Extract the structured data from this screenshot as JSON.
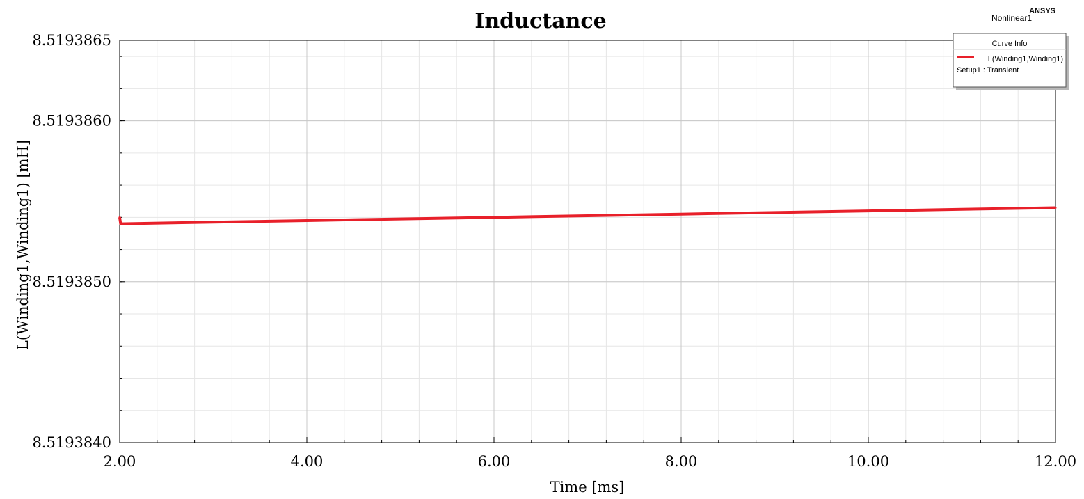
{
  "brand": "ANSYS",
  "plot_name": "Nonlinear1",
  "legend": {
    "title": "Curve Info",
    "entries": [
      {
        "name": "L(Winding1,Winding1)",
        "color": "#e8202a"
      }
    ],
    "setup": "Setup1 : Transient"
  },
  "chart_data": {
    "type": "line",
    "title": "Inductance",
    "xlabel": "Time [ms]",
    "ylabel": "L(Winding1,Winding1) [mH]",
    "xlim": [
      2.0,
      12.0
    ],
    "ylim": [
      8.519384,
      8.5193865
    ],
    "x_ticks": [
      2,
      4,
      6,
      8,
      10,
      12
    ],
    "x_tick_labels": [
      "2.00",
      "4.00",
      "6.00",
      "8.00",
      "10.00",
      "12.00"
    ],
    "x_minor_step": 0.4,
    "y_ticks": [
      8.519384,
      8.519385,
      8.519386,
      8.5193865
    ],
    "y_tick_labels": [
      "8.5193840",
      "8.5193850",
      "8.5193860",
      "8.5193865"
    ],
    "y_minor_step": 2e-07,
    "grid": true,
    "legend_position": "top-right",
    "series": [
      {
        "name": "L(Winding1,Winding1)",
        "color": "#e8202a",
        "x": [
          2.0,
          2.01,
          3.0,
          4.0,
          5.0,
          6.0,
          7.0,
          8.0,
          9.0,
          10.0,
          11.0,
          12.0
        ],
        "y": [
          8.5193854,
          8.51938536,
          8.51938537,
          8.51938538,
          8.51938539,
          8.5193854,
          8.51938541,
          8.51938542,
          8.51938543,
          8.51938544,
          8.51938545,
          8.51938546
        ]
      }
    ]
  }
}
